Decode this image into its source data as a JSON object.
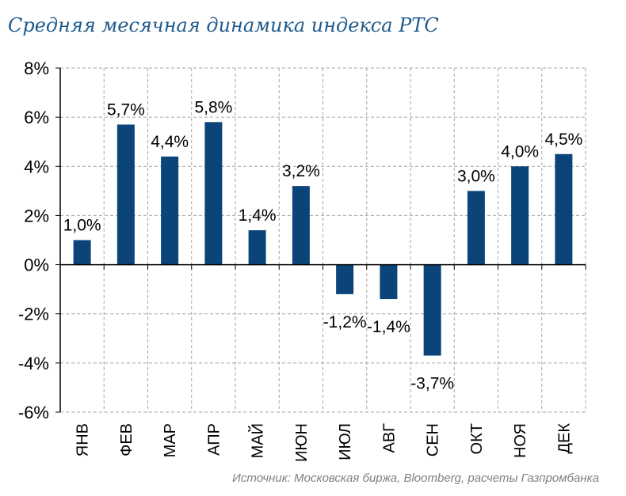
{
  "chart_data": {
    "type": "bar",
    "title": "Средняя месячная динамика индекса РТС",
    "source": "Источник: Московская биржа, Bloomberg, расчеты Газпромбанка",
    "categories": [
      "ЯНВ",
      "ФЕВ",
      "МАР",
      "АПР",
      "МАЙ",
      "ИЮН",
      "ИЮЛ",
      "АВГ",
      "СЕН",
      "ОКТ",
      "НОЯ",
      "ДЕК"
    ],
    "values": [
      1.0,
      5.7,
      4.4,
      5.8,
      1.4,
      3.2,
      -1.2,
      -1.4,
      -3.7,
      3.0,
      4.0,
      4.5
    ],
    "data_labels": [
      "1,0%",
      "5,7%",
      "4,4%",
      "5,8%",
      "1,4%",
      "3,2%",
      "-1,2%",
      "-1,4%",
      "-3,7%",
      "3,0%",
      "4,0%",
      "4,5%"
    ],
    "yticks": [
      8,
      6,
      4,
      2,
      0,
      -2,
      -4,
      -6
    ],
    "ytick_labels": [
      "8%",
      "6%",
      "4%",
      "2%",
      "0%",
      "-2%",
      "-4%",
      "-6%"
    ],
    "ylim": [
      -6,
      8
    ],
    "grid": true,
    "bar_color": "#0b4479",
    "xlabel": "",
    "ylabel": ""
  }
}
